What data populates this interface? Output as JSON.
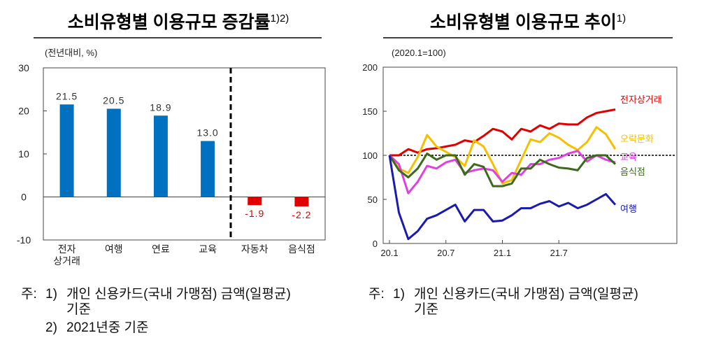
{
  "chart_data": [
    {
      "type": "bar",
      "title": "소비유형별 이용규모 증감률",
      "title_note": "1)2)",
      "unit_label": "(전년대비,  %)",
      "categories": [
        "전자\n상거래",
        "여행",
        "연료",
        "교육",
        "자동차",
        "음식점"
      ],
      "values": [
        21.5,
        20.5,
        18.9,
        13.0,
        -1.9,
        -2.2
      ],
      "value_labels": [
        "21.5",
        "20.5",
        "18.9",
        "13.0",
        "-1.9",
        "-2.2"
      ],
      "colors": [
        "#0070c0",
        "#0070c0",
        "#0070c0",
        "#0070c0",
        "#e00000",
        "#e00000"
      ],
      "ylim": [
        -10,
        30
      ],
      "yticks": [
        -10,
        0,
        10,
        20,
        30
      ],
      "note_label": "주:",
      "notes": [
        {
          "marker": "1)",
          "text": "개인 신용카드(국내 가맹점) 금액(일평균)\n기준"
        },
        {
          "marker": "2)",
          "text": "2021년중 기준"
        }
      ]
    },
    {
      "type": "line",
      "title": "소비유형별 이용규모 추이",
      "title_note": "1)",
      "unit_label": "(2020.1=100)",
      "categories": [
        "20.1",
        null,
        null,
        null,
        null,
        null,
        "20.7",
        null,
        null,
        null,
        null,
        null,
        "21.1",
        null,
        null,
        null,
        null,
        null,
        "21.7",
        null,
        null,
        null,
        null,
        null,
        null
      ],
      "reference_line": 100,
      "series": [
        {
          "name": "전자상거래",
          "color": "#e00000",
          "values": [
            100,
            100,
            107,
            103,
            107,
            108,
            110,
            112,
            117,
            115,
            122,
            130,
            127,
            118,
            130,
            127,
            134,
            130,
            136,
            135,
            135,
            143,
            148,
            150,
            152
          ]
        },
        {
          "name": "오락문화",
          "color": "#f5c000",
          "values": [
            100,
            85,
            80,
            98,
            123,
            110,
            104,
            98,
            88,
            117,
            110,
            90,
            68,
            72,
            95,
            118,
            115,
            125,
            120,
            112,
            106,
            115,
            132,
            124,
            107
          ]
        },
        {
          "name": "교육",
          "color": "#e040e0",
          "values": [
            100,
            90,
            57,
            70,
            88,
            85,
            92,
            95,
            80,
            83,
            85,
            83,
            70,
            80,
            78,
            90,
            90,
            95,
            97,
            102,
            105,
            93,
            100,
            95,
            92
          ]
        },
        {
          "name": "음식점",
          "color": "#3a6a1a",
          "values": [
            100,
            83,
            75,
            85,
            102,
            95,
            100,
            100,
            78,
            90,
            87,
            65,
            65,
            68,
            85,
            85,
            95,
            90,
            86,
            85,
            83,
            97,
            100,
            100,
            90
          ]
        },
        {
          "name": "여행",
          "color": "#1a1ab0",
          "values": [
            100,
            35,
            5,
            14,
            28,
            32,
            38,
            44,
            25,
            38,
            38,
            25,
            26,
            32,
            40,
            40,
            45,
            48,
            42,
            46,
            40,
            44,
            50,
            56,
            44
          ]
        }
      ],
      "ylim": [
        0,
        200
      ],
      "yticks": [
        0,
        50,
        100,
        150,
        200
      ],
      "note_label": "주:",
      "notes": [
        {
          "marker": "1)",
          "text": "개인 신용카드(국내 가맹점) 금액(일평균)\n기준"
        }
      ]
    }
  ]
}
